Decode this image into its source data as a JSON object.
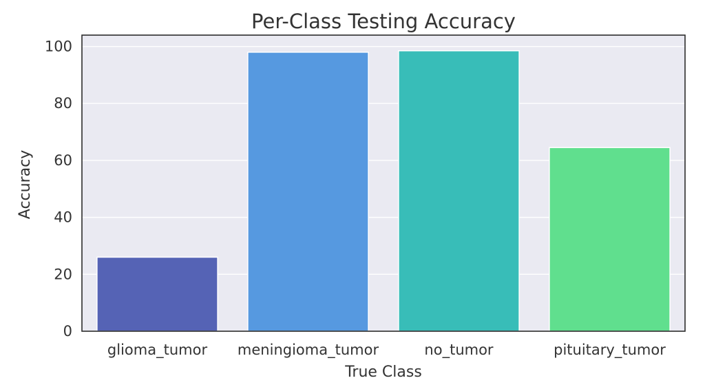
{
  "chart_data": {
    "type": "bar",
    "title": "Per-Class Testing Accuracy",
    "xlabel": "True Class",
    "ylabel": "Accuracy",
    "categories": [
      "glioma_tumor",
      "meningioma_tumor",
      "no_tumor",
      "pituitary_tumor"
    ],
    "values": [
      26,
      98,
      98.5,
      64.5
    ],
    "ylim": [
      0,
      104
    ],
    "yticks": [
      "0",
      "20",
      "40",
      "60",
      "80",
      "100"
    ],
    "colors": [
      "#5563b5",
      "#5699e0",
      "#38bdb8",
      "#60df8e"
    ],
    "grid": true
  }
}
